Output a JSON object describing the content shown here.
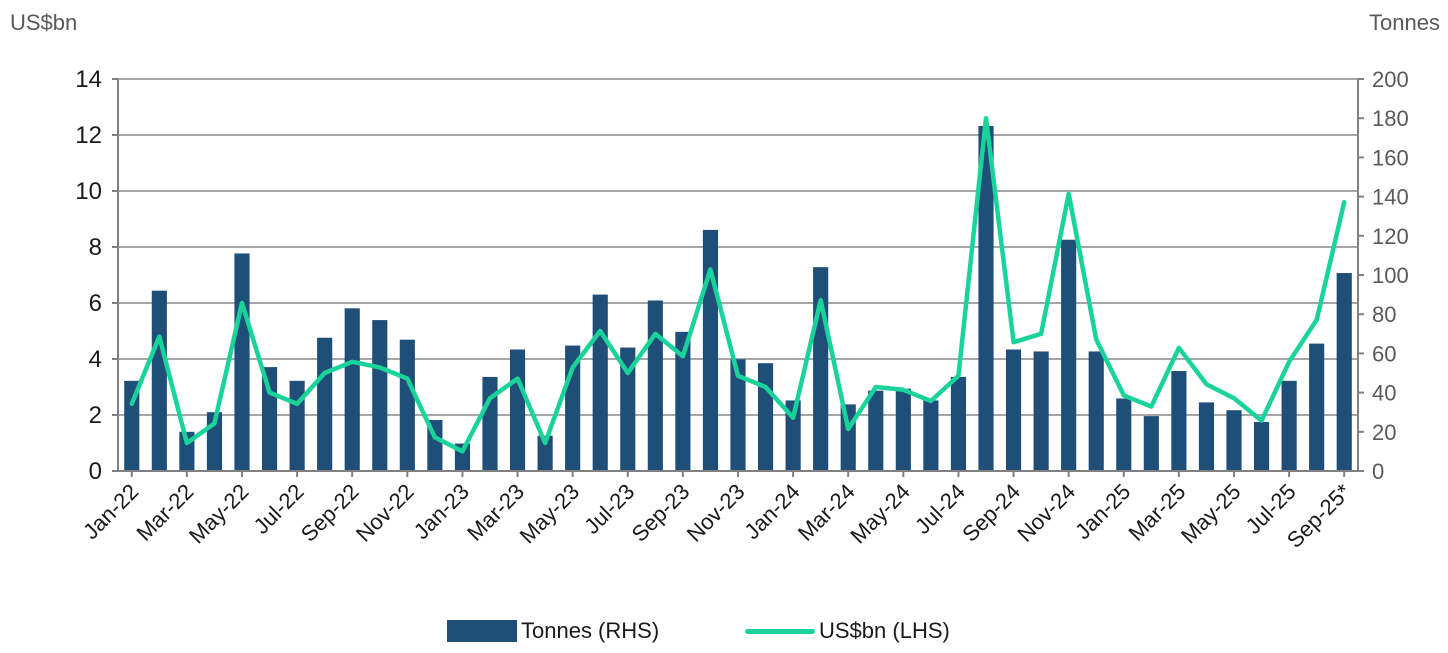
{
  "chart_data": {
    "type": "bar+line",
    "left_axis_label": "US$bn",
    "right_axis_label": "Tonnes",
    "left_ylim": [
      0,
      14
    ],
    "right_ylim": [
      0,
      200
    ],
    "left_ticks": [
      0,
      2,
      4,
      6,
      8,
      10,
      12,
      14
    ],
    "right_ticks": [
      0,
      20,
      40,
      60,
      80,
      100,
      120,
      140,
      160,
      180,
      200
    ],
    "grid": true,
    "categories": [
      "Jan-22",
      "Feb-22",
      "Mar-22",
      "Apr-22",
      "May-22",
      "Jun-22",
      "Jul-22",
      "Aug-22",
      "Sep-22",
      "Oct-22",
      "Nov-22",
      "Dec-22",
      "Jan-23",
      "Feb-23",
      "Mar-23",
      "Apr-23",
      "May-23",
      "Jun-23",
      "Jul-23",
      "Aug-23",
      "Sep-23",
      "Oct-23",
      "Nov-23",
      "Dec-23",
      "Jan-24",
      "Feb-24",
      "Mar-24",
      "Apr-24",
      "May-24",
      "Jun-24",
      "Jul-24",
      "Aug-24",
      "Sep-24",
      "Oct-24",
      "Nov-24",
      "Dec-24",
      "Jan-25",
      "Feb-25",
      "Mar-25",
      "Apr-25",
      "May-25",
      "Jun-25",
      "Jul-25",
      "Aug-25",
      "Sep-25*"
    ],
    "x_tick_labels": [
      "Jan-22",
      "Mar-22",
      "May-22",
      "Jul-22",
      "Sep-22",
      "Nov-22",
      "Jan-23",
      "Mar-23",
      "May-23",
      "Jul-23",
      "Sep-23",
      "Nov-23",
      "Jan-24",
      "Mar-24",
      "May-24",
      "Jul-24",
      "Sep-24",
      "Nov-24",
      "Jan-25",
      "Mar-25",
      "May-25",
      "Jul-25",
      "Sep-25*"
    ],
    "series": [
      {
        "name": "Tonnes (RHS)",
        "type": "bar",
        "axis": "right",
        "color": "#1f4e79",
        "values": [
          46,
          92,
          20,
          30,
          111,
          53,
          46,
          68,
          83,
          77,
          67,
          26,
          14,
          48,
          62,
          18,
          64,
          90,
          63,
          87,
          71,
          123,
          57,
          55,
          36,
          104,
          34,
          41,
          42,
          36,
          48,
          176,
          62,
          61,
          118,
          61,
          37,
          28,
          51,
          35,
          31,
          25,
          46,
          65,
          101
        ]
      },
      {
        "name": "US$bn (LHS)",
        "type": "line",
        "axis": "left",
        "color": "#19d39a",
        "values": [
          2.4,
          4.8,
          1.0,
          1.7,
          6.0,
          2.8,
          2.4,
          3.5,
          3.9,
          3.7,
          3.3,
          1.2,
          0.7,
          2.6,
          3.3,
          1.0,
          3.7,
          5.0,
          3.5,
          4.9,
          4.1,
          7.2,
          3.4,
          3.0,
          1.9,
          6.1,
          1.5,
          3.0,
          2.9,
          2.5,
          3.4,
          12.6,
          4.6,
          4.9,
          9.9,
          4.7,
          2.7,
          2.3,
          4.4,
          3.1,
          2.6,
          1.8,
          3.9,
          5.4,
          9.6
        ]
      }
    ]
  }
}
